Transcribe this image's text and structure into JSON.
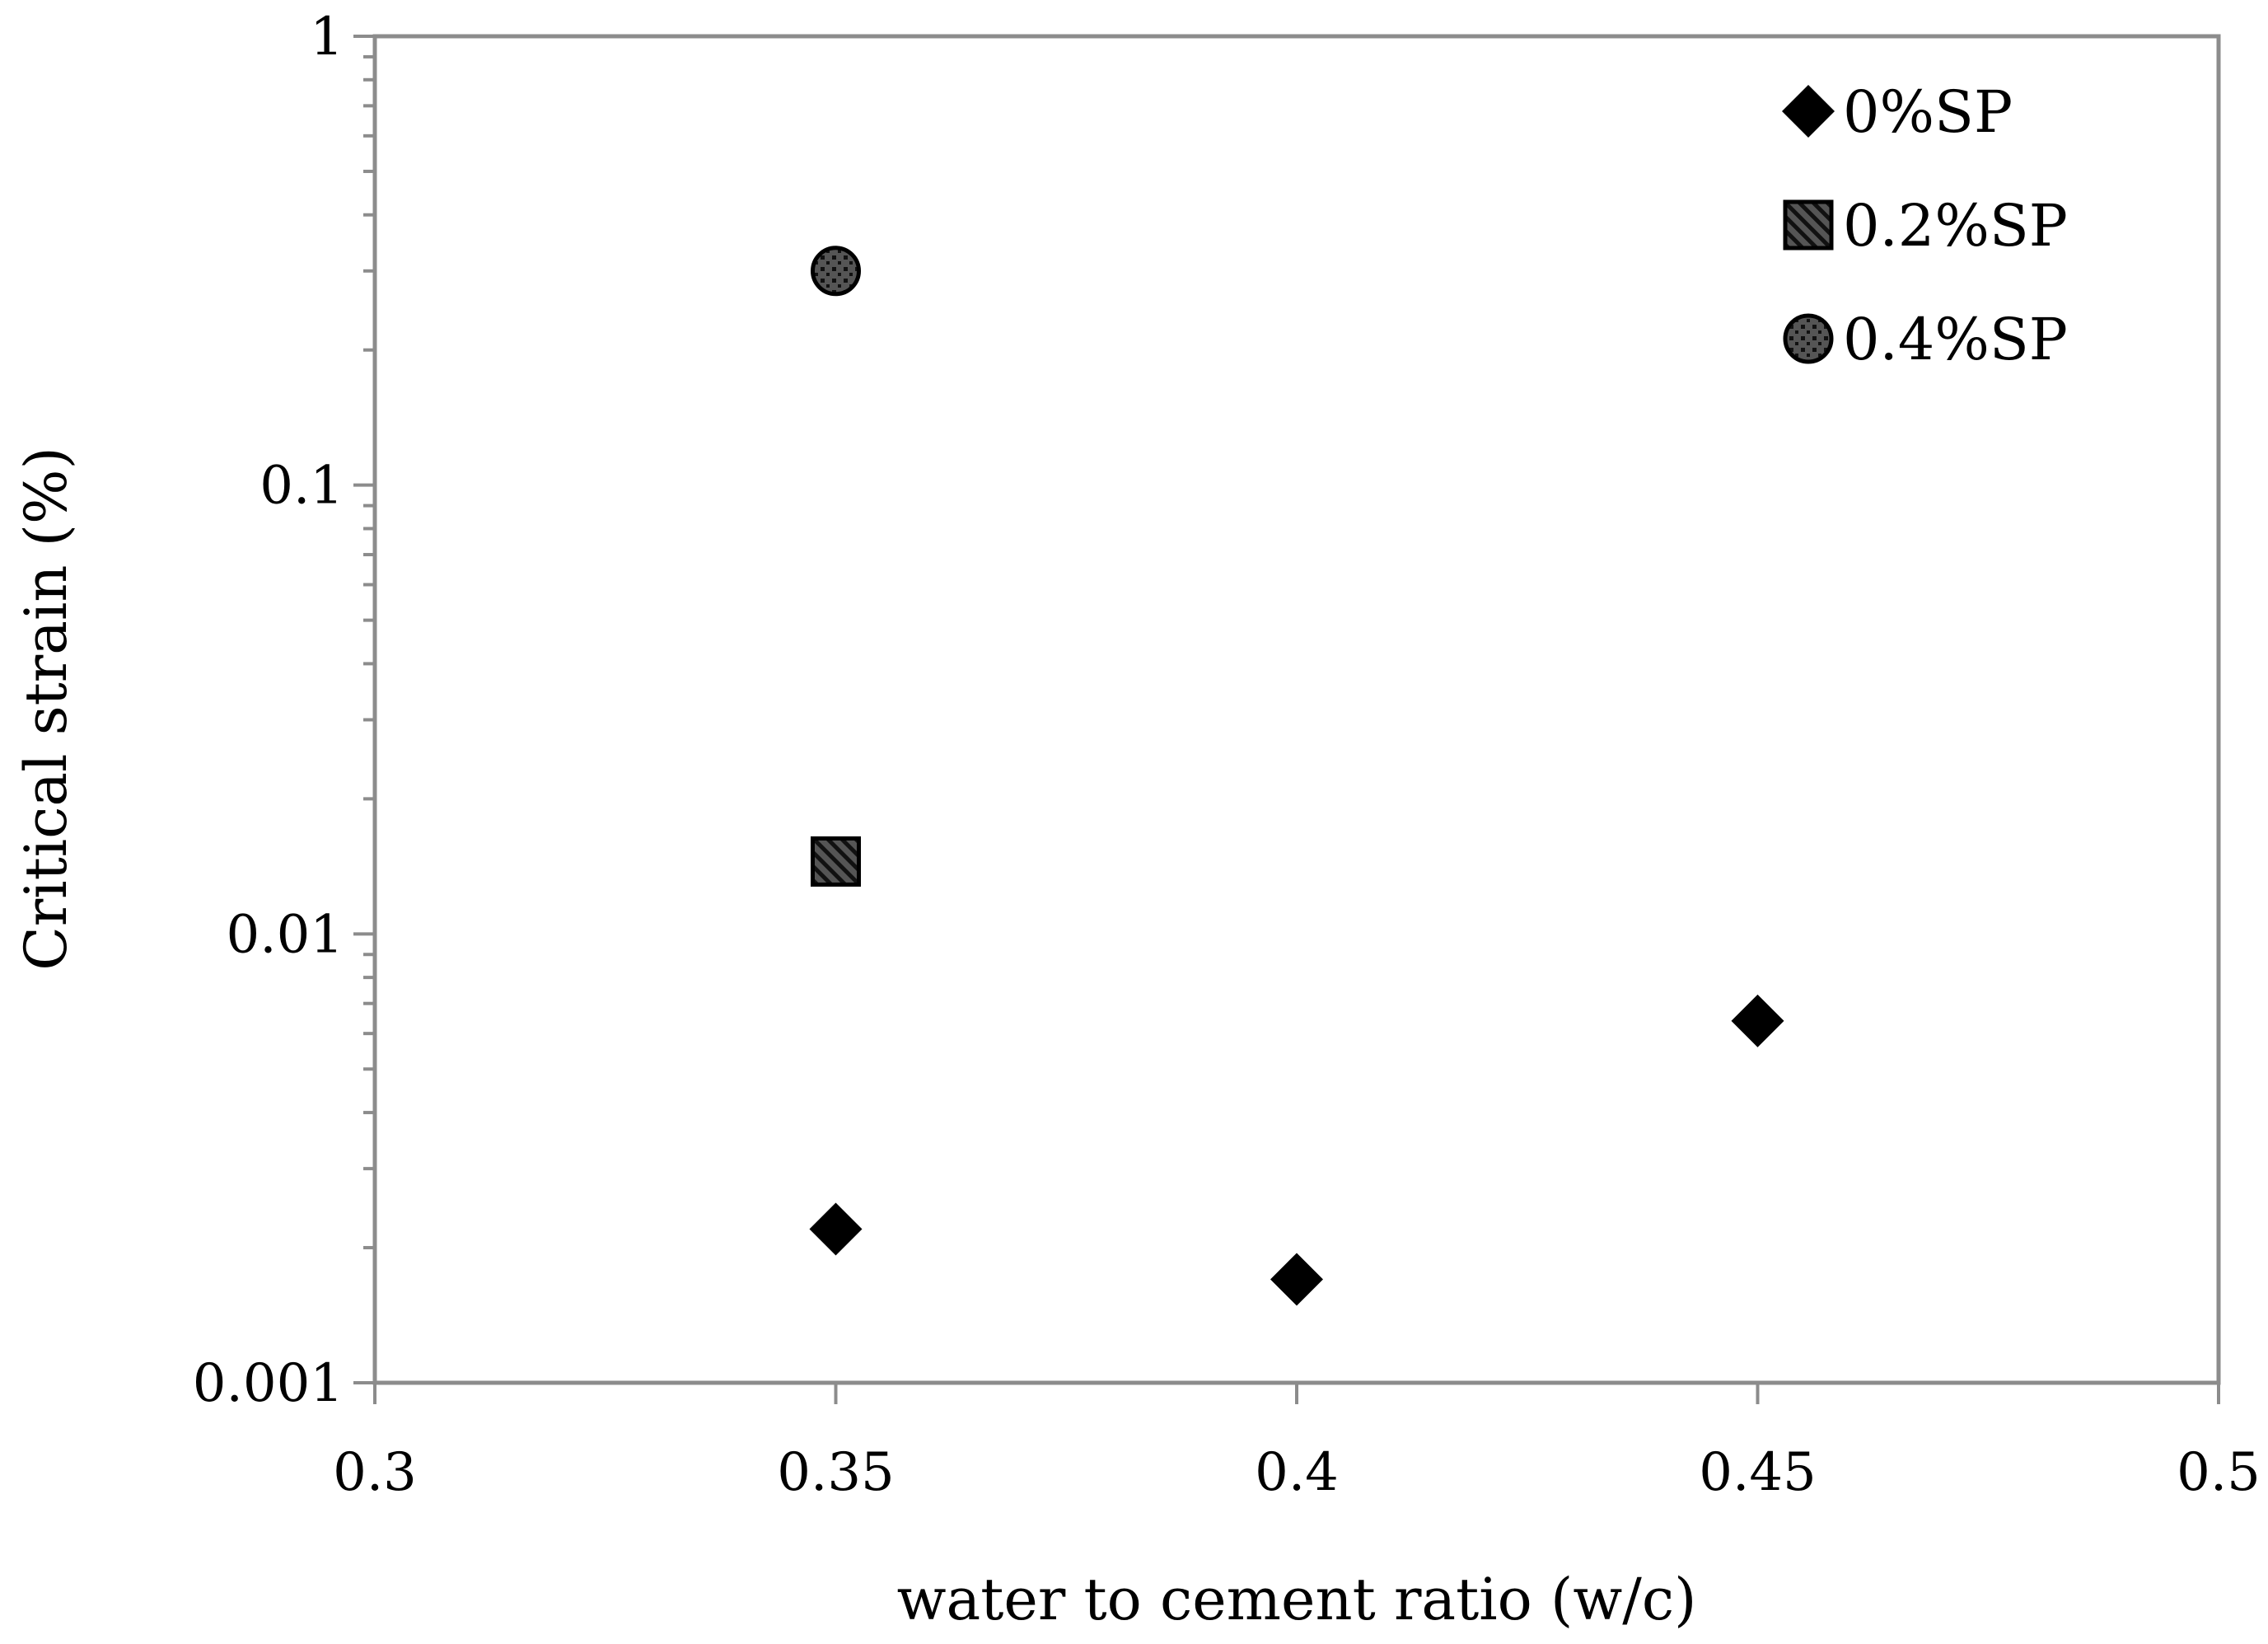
{
  "chart_data": {
    "type": "scatter",
    "title": "",
    "xlabel": "water to cement ratio (w/c)",
    "ylabel": "Critical strain (%)",
    "xlim": [
      0.3,
      0.5
    ],
    "ylim": [
      0.001,
      1
    ],
    "y_scale": "log",
    "x_ticks": [
      "0.3",
      "0.35",
      "0.4",
      "0.45",
      "0.5"
    ],
    "y_ticks": [
      "0.001",
      "0.01",
      "0.1",
      "1"
    ],
    "grid": false,
    "legend_position": "top-right",
    "series": [
      {
        "name": "0%SP",
        "marker": "diamond",
        "color": "#000000",
        "points": [
          {
            "x": 0.35,
            "y": 0.0022
          },
          {
            "x": 0.4,
            "y": 0.0017
          },
          {
            "x": 0.45,
            "y": 0.0064
          }
        ]
      },
      {
        "name": "0.2%SP",
        "marker": "square-hatched",
        "color": "#666666",
        "points": [
          {
            "x": 0.35,
            "y": 0.0145
          }
        ]
      },
      {
        "name": "0.4%SP",
        "marker": "circle-dotted",
        "color": "#555555",
        "points": [
          {
            "x": 0.35,
            "y": 0.3
          }
        ]
      }
    ]
  }
}
